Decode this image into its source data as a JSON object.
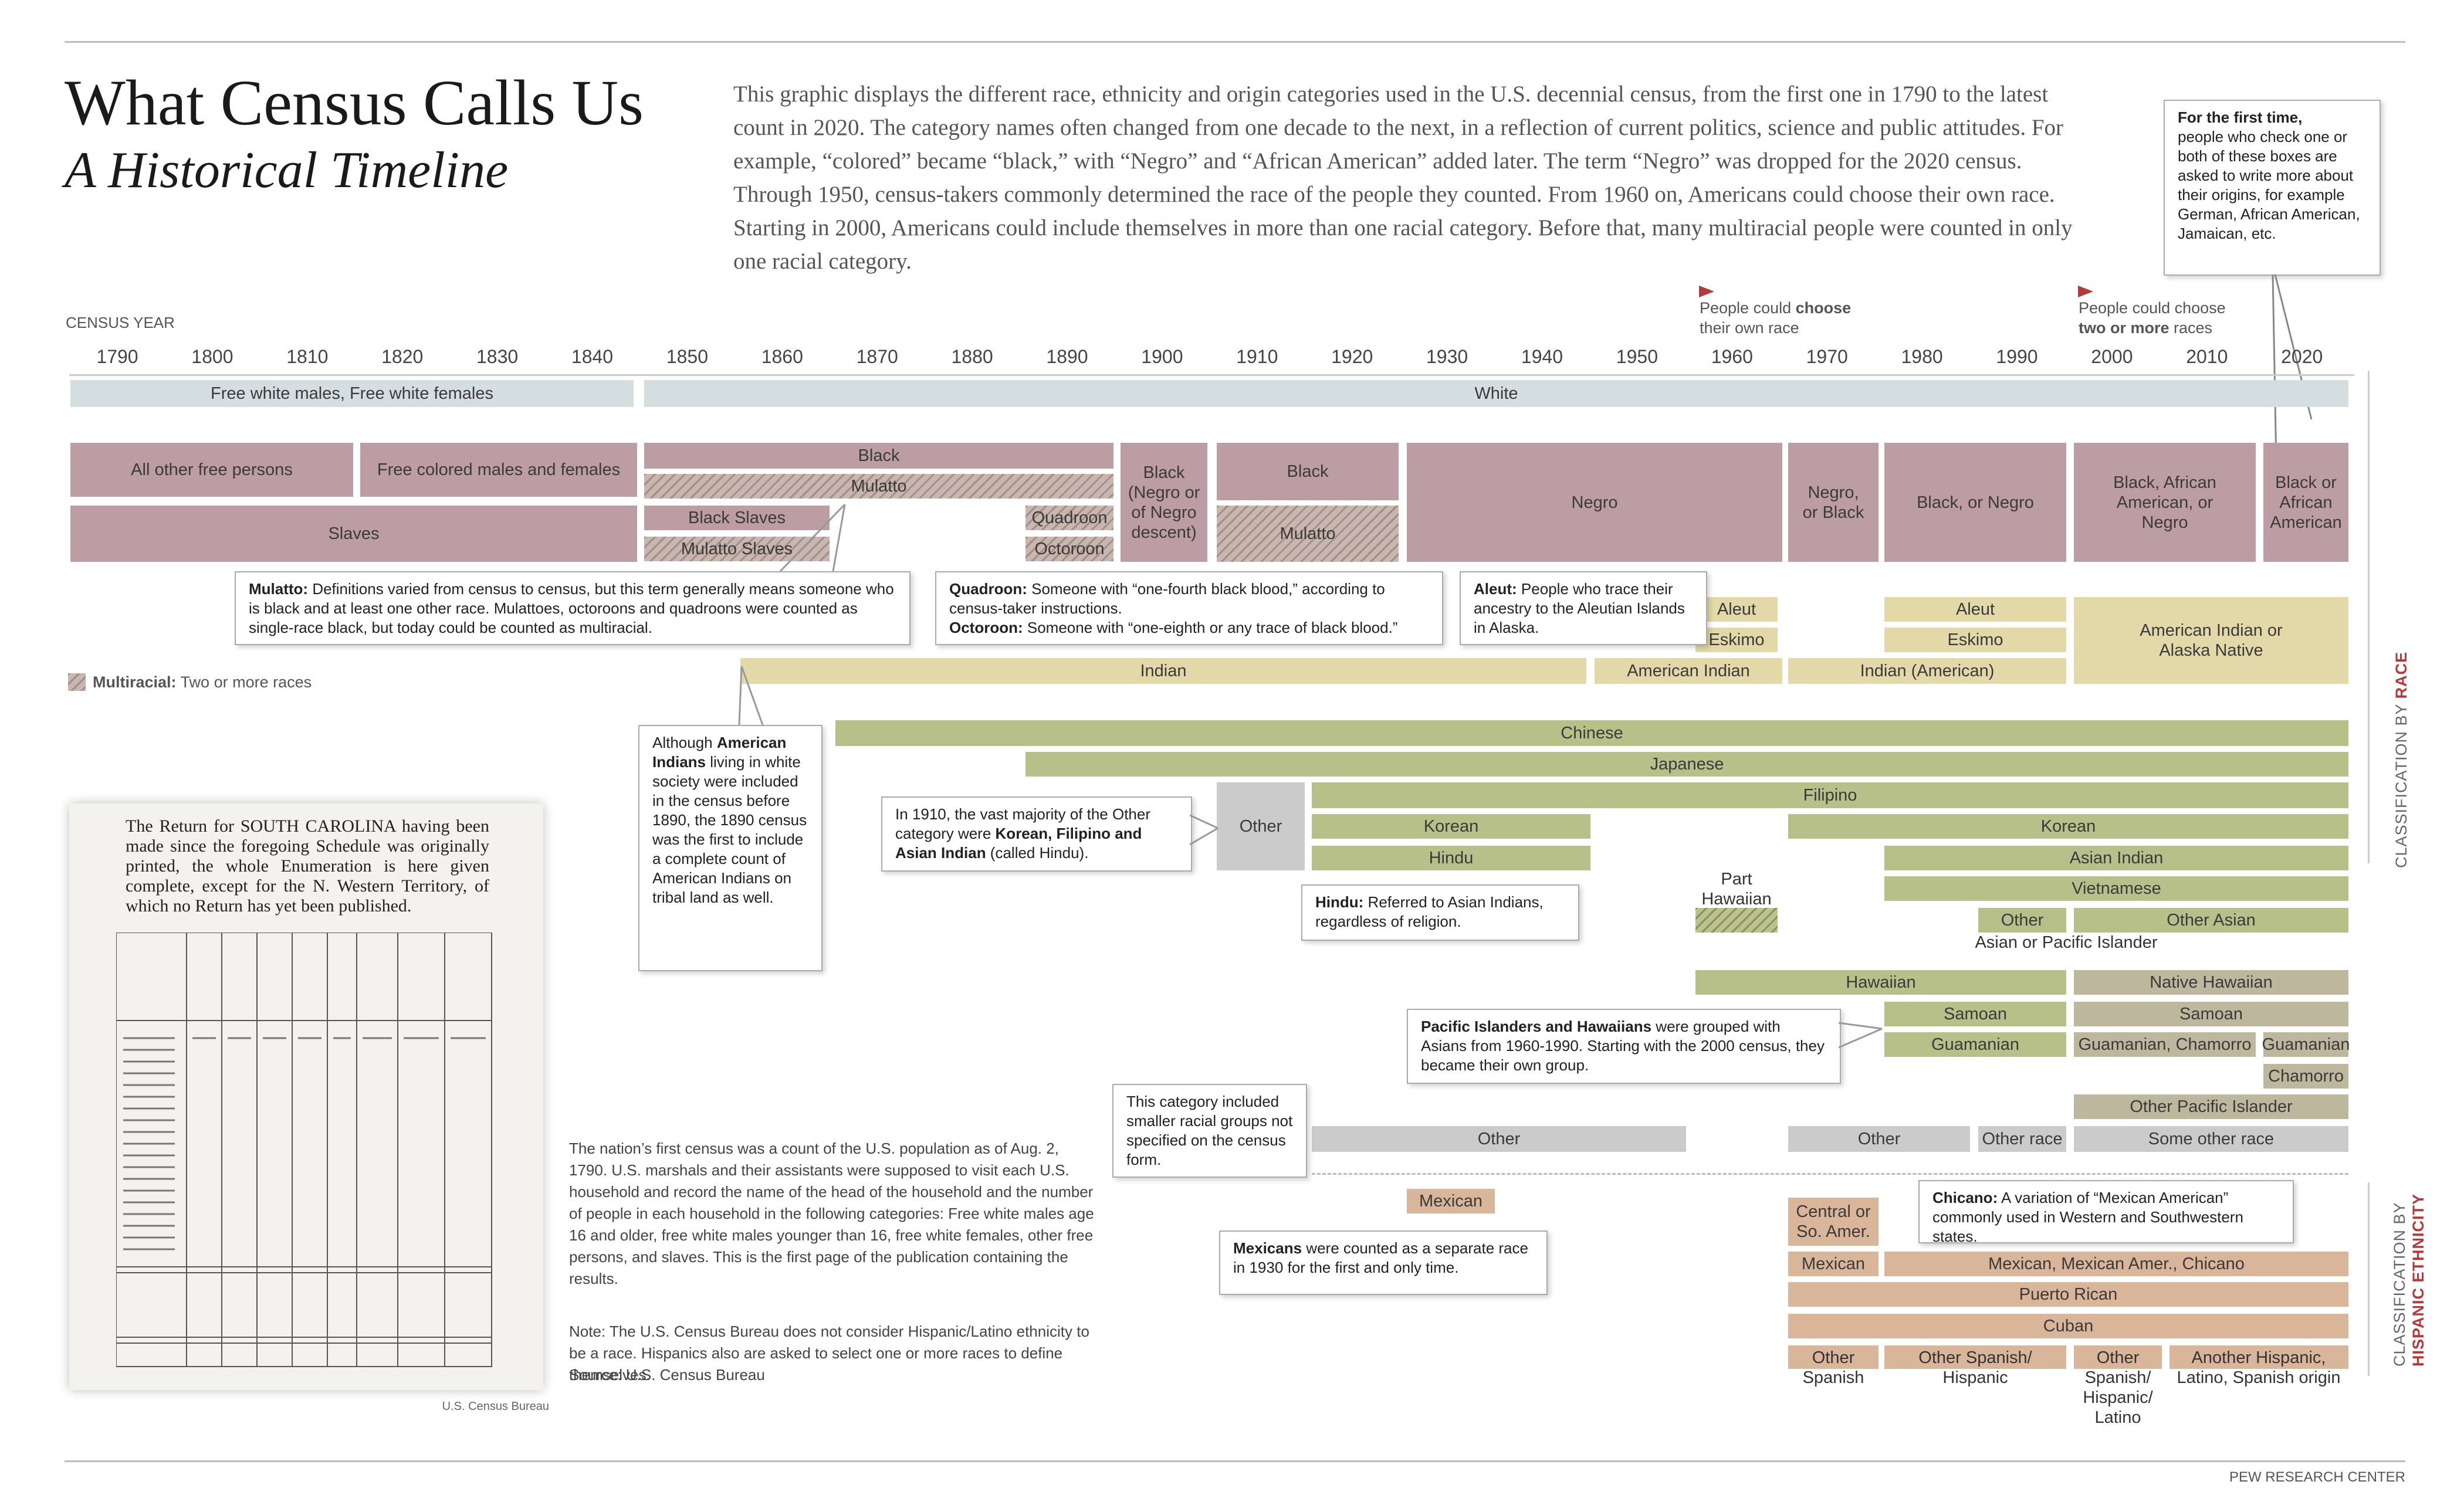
{
  "header": {
    "title": "What Census Calls Us",
    "subtitle": "A Historical Timeline",
    "intro": "This graphic displays the different race, ethnicity and origin categories used in the U.S. decennial census, from the first one in 1790 to the latest count in 2020. The category names often changed from one decade to the next, in a reflection of current politics, science and public attitudes. For example, “colored” became “black,” with “Negro” and “African American” added later. The term “Negro” was dropped for the 2020 census. Through 1950, census-takers commonly determined the race of the people they counted. From 1960 on, Americans could choose their own race. Starting in 2000, Americans could include themselves in more than one racial category. Before that, many multiracial people were counted in only one racial category."
  },
  "first_time_note": {
    "bold": "For the first time,",
    "text": "people who check one or both of these boxes are asked to write more about their origins, for example German, African American, Jamaican, etc."
  },
  "census_year_label": "CENSUS YEAR",
  "years": [
    "1790",
    "1800",
    "1810",
    "1820",
    "1830",
    "1840",
    "1850",
    "1860",
    "1870",
    "1880",
    "1890",
    "1900",
    "1910",
    "1920",
    "1930",
    "1940",
    "1950",
    "1960",
    "1970",
    "1980",
    "1990",
    "2000",
    "2010",
    "2020"
  ],
  "flags": {
    "choose_a": "People could ",
    "choose_b": "choose",
    "choose_c": "their own race",
    "multi_a": "People could choose",
    "multi_b": "two or more",
    "multi_c": " races"
  },
  "bars": {
    "free_white": "Free white males, Free white females",
    "white": "White",
    "all_other_free": "All other free persons",
    "free_colored": "Free colored males and females",
    "slaves": "Slaves",
    "black_1850": "Black",
    "mulatto_1850": "Mulatto",
    "black_slaves": "Black Slaves",
    "mulatto_slaves": "Mulatto  Slaves",
    "quadroon": "Quadroon",
    "octoroon": "Octoroon",
    "black_1900": "Black (Negro or of Negro descent)",
    "black_1910": "Black",
    "mulatto_1910": "Mulatto",
    "negro": "Negro",
    "negro_or_black": "Negro, or Black",
    "black_or_negro": "Black, or Negro",
    "black_aa_negro": "Black, African American, or Negro",
    "black_aa": "Black or African American",
    "aleut_1960": "Aleut",
    "eskimo_1960": "Eskimo",
    "aleut_1980": "Aleut",
    "eskimo_1980": "Eskimo",
    "aian": "American Indian or Alaska Native",
    "indian": "Indian",
    "american_indian": "American Indian",
    "indian_american": "Indian (American)",
    "chinese": "Chinese",
    "japanese": "Japanese",
    "filipino": "Filipino",
    "other_1910": "Other",
    "korean_1920": "Korean",
    "hindu": "Hindu",
    "korean_1970": "Korean",
    "asian_indian": "Asian Indian",
    "vietnamese": "Vietnamese",
    "other_1990": "Other",
    "other_asian": "Other Asian",
    "api": "Asian or Pacific Islander",
    "part_hawaiian": "Part Hawaiian",
    "hawaiian": "Hawaiian",
    "native_hawaiian": "Native Hawaiian",
    "samoan_1980": "Samoan",
    "samoan_2000": "Samoan",
    "guamanian_1980": "Guamanian",
    "guamanian_chamorro": "Guamanian, Chamorro",
    "guamanian_2020": "Guamanian",
    "chamorro": "Chamorro",
    "other_pi": "Other Pacific Islander",
    "other_1920": "Other",
    "other_1970": "Other",
    "other_race": "Other race",
    "some_other_race": "Some other race",
    "mexican_1930": "Mexican",
    "central_so_amer": "Central or So. Amer.",
    "mexican_1970": "Mexican",
    "mexican_chicano": "Mexican, Mexican Amer., Chicano",
    "puerto_rican": "Puerto Rican",
    "cuban": "Cuban",
    "other_spanish": "Other Spanish",
    "other_spanish_hispanic": "Other Spanish/ Hispanic",
    "other_spanish_hispanic_latino": "Other Spanish/ Hispanic/ Latino",
    "another_hispanic": "Another Hispanic, Latino, Spanish origin"
  },
  "notes": {
    "mulatto": {
      "bold": "Mulatto:",
      "text": " Definitions varied from census to census, but this term generally means someone who is black and at least one other race. Mulattoes, octoroons and quadroons were counted as single-race black, but today could be counted as multiracial."
    },
    "quadroon": {
      "bold1": "Quadroon:",
      "text1": " Someone with “one-fourth black blood,” according to census-taker instructions.",
      "bold2": "Octoroon:",
      "text2": " Someone with “one-eighth or any trace of black blood.”"
    },
    "aleut": {
      "bold": "Aleut:",
      "text": " People who trace their ancestry to the Aleutian Islands in Alaska."
    },
    "indians": {
      "a": "Although ",
      "bold": "American Indians",
      "b": " living in white society were included in the census before 1890, the 1890 census was the first to include a complete count of American Indians on tribal land as well."
    },
    "other_1910": {
      "a": "In 1910, the vast majority of the Other category were ",
      "bold": "Korean, Filipino and Asian Indian",
      "b": " (called Hindu)."
    },
    "hindu": {
      "bold": "Hindu:",
      "text": " Referred to Asian Indians, regardless of religion."
    },
    "pacific": {
      "bold": "Pacific Islanders and Hawaiians",
      "text": " were grouped with Asians from 1960-1990. Starting with the 2000 census, they became their own group."
    },
    "smaller": {
      "text": "This category included smaller racial groups not specified on the census form."
    },
    "mexicans": {
      "bold": "Mexicans",
      "text": " were counted as a separate race in 1930 for the first and only time."
    },
    "chicano": {
      "bold": "Chicano:",
      "text": " A variation of “Mexican American” commonly used in Western and Southwestern states."
    }
  },
  "legend": {
    "bold": "Multiracial:",
    "text": " Two or more races"
  },
  "side_labels": {
    "race_a": "CLASSIFICATION BY ",
    "race_b": "RACE",
    "hisp_a": "CLASSIFICATION BY",
    "hisp_b": "HISPANIC ETHNICITY"
  },
  "document": {
    "heading": "The Return for SOUTH CAROLINA having been made since the foregoing Schedule was originally printed, the whole Enumeration is here given complete, except for the N. Western Territory, of which no Return has yet been published.",
    "credit": "U.S. Census Bureau"
  },
  "description": {
    "p1": "The nation’s first census was a count of the U.S. population as of Aug. 2, 1790. U.S. marshals and their assistants were supposed to visit each U.S. household and record the name of the head of the household and the number of people in each household in the following categories: Free white males age 16 and older, free white males younger than 16, free white females, other free persons, and slaves. This is the first page of the publication containing the results.",
    "p2": "Note: The U.S. Census Bureau does not consider Hispanic/Latino ethnicity to be a race. Hispanics also are asked to select one or more races to define themselves.",
    "p3": "Source: U.S. Census Bureau"
  },
  "footer": "PEW RESEARCH CENTER",
  "colors": {
    "white": "#d4dde0",
    "black": "#bb9da3",
    "indian": "#e3d8a8",
    "asian": "#b8c08a",
    "other": "#cbcbcb",
    "pacific": "#bdb79e",
    "hispanic": "#d9b59a",
    "accent": "#b23a3a"
  }
}
